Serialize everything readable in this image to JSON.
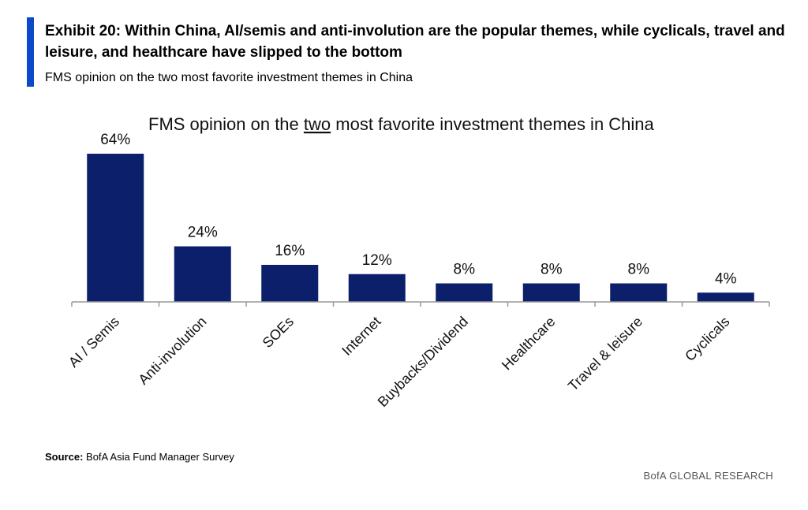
{
  "exhibit": {
    "title": "Exhibit 20: Within China, AI/semis and anti-involution are the popular themes, while cyclicals, travel and leisure, and healthcare have slipped to the bottom",
    "subtitle": "FMS opinion on the two most favorite investment themes in China",
    "accent_color": "#0a49c8"
  },
  "chart_data": {
    "type": "bar",
    "title_parts": {
      "before": "FMS opinion on the ",
      "emphasis": "two",
      "after": " most favorite investment themes in China"
    },
    "categories": [
      "AI / Semis",
      "Anti-involution",
      "SOEs",
      "Internet",
      "Buybacks/Dividend",
      "Healthcare",
      "Travel & leisure",
      "Cyclicals"
    ],
    "series": [
      {
        "values": [
          64,
          24,
          16,
          12,
          8,
          8,
          8,
          4
        ],
        "color": "#0b1f6b"
      }
    ],
    "data_labels": [
      "64%",
      "24%",
      "16%",
      "12%",
      "8%",
      "8%",
      "8%",
      "4%"
    ],
    "ylim": [
      0,
      64
    ],
    "xlabel": "",
    "ylabel": "",
    "grid": false,
    "legend": "none"
  },
  "footer": {
    "source_label": "Source:",
    "source_text": "BofA Asia Fund Manager Survey",
    "brand": "BofA GLOBAL RESEARCH"
  }
}
